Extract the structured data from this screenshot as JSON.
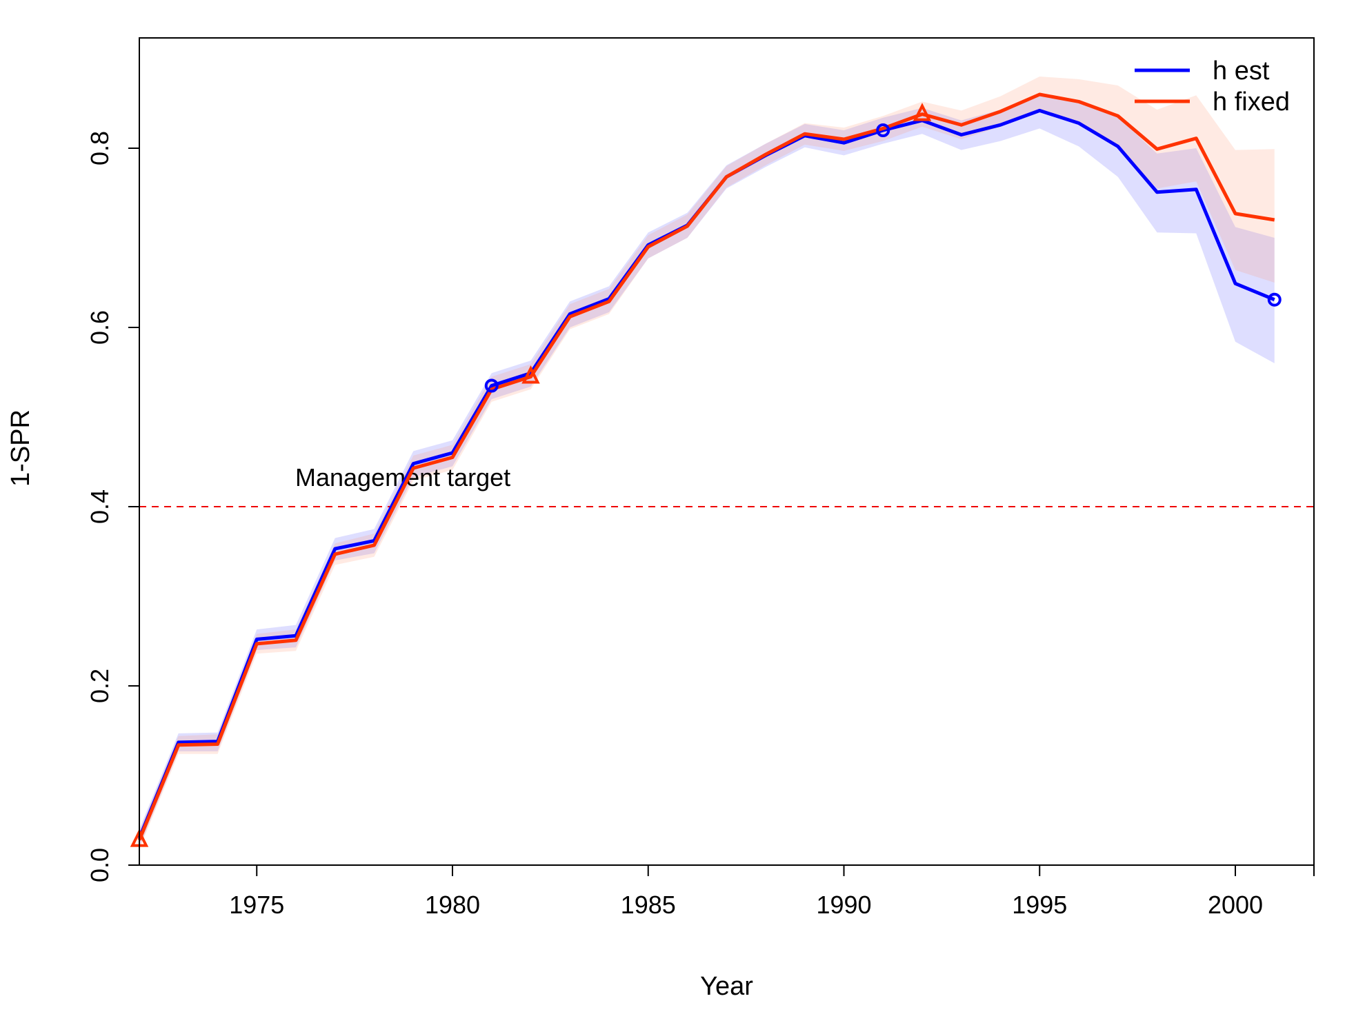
{
  "chart_data": {
    "type": "line",
    "title": "",
    "xlabel": "Year",
    "ylabel": "1-SPR",
    "xlim": [
      1972,
      2002
    ],
    "ylim": [
      0,
      0.9
    ],
    "x_ticks": [
      1975,
      1980,
      1985,
      1990,
      1995,
      2000
    ],
    "y_ticks": [
      0.0,
      0.2,
      0.4,
      0.6,
      0.8
    ],
    "x_tick_labels": [
      "1975",
      "1980",
      "1985",
      "1990",
      "1995",
      "2000"
    ],
    "y_tick_labels": [
      "0.0",
      "0.2",
      "0.4",
      "0.6",
      "0.8"
    ],
    "grid": false,
    "legend_position": "top-right",
    "x": [
      1972,
      1973,
      1974,
      1975,
      1976,
      1977,
      1978,
      1979,
      1980,
      1981,
      1982,
      1983,
      1984,
      1985,
      1986,
      1987,
      1988,
      1989,
      1990,
      1991,
      1992,
      1993,
      1994,
      1995,
      1996,
      1997,
      1998,
      1999,
      2000,
      2001
    ],
    "series": [
      {
        "name": "h est",
        "color": "#0000ff",
        "band_color": "#0000ff",
        "marker": "circle",
        "marker_years": [
          1981,
          1991,
          2001
        ],
        "values": [
          0.03,
          0.137,
          0.138,
          0.252,
          0.256,
          0.353,
          0.362,
          0.448,
          0.46,
          0.535,
          0.549,
          0.615,
          0.632,
          0.692,
          0.714,
          0.768,
          0.792,
          0.814,
          0.806,
          0.82,
          0.831,
          0.815,
          0.826,
          0.842,
          0.828,
          0.802,
          0.751,
          0.754,
          0.649,
          0.631
        ],
        "lower": [
          0.02,
          0.127,
          0.127,
          0.24,
          0.243,
          0.34,
          0.348,
          0.433,
          0.445,
          0.52,
          0.534,
          0.6,
          0.617,
          0.677,
          0.7,
          0.755,
          0.779,
          0.801,
          0.792,
          0.805,
          0.816,
          0.798,
          0.808,
          0.822,
          0.802,
          0.768,
          0.706,
          0.705,
          0.584,
          0.56
        ],
        "upper": [
          0.04,
          0.147,
          0.148,
          0.263,
          0.268,
          0.365,
          0.375,
          0.462,
          0.474,
          0.549,
          0.563,
          0.629,
          0.646,
          0.706,
          0.728,
          0.781,
          0.805,
          0.827,
          0.82,
          0.834,
          0.845,
          0.831,
          0.843,
          0.86,
          0.852,
          0.835,
          0.794,
          0.8,
          0.712,
          0.7
        ]
      },
      {
        "name": "h fixed",
        "color": "#ff3300",
        "band_color": "#ff8866",
        "marker": "triangle",
        "marker_years": [
          1972,
          1982,
          1992
        ],
        "values": [
          0.028,
          0.134,
          0.135,
          0.247,
          0.251,
          0.347,
          0.357,
          0.443,
          0.455,
          0.531,
          0.545,
          0.612,
          0.629,
          0.69,
          0.713,
          0.768,
          0.793,
          0.816,
          0.81,
          0.822,
          0.838,
          0.826,
          0.841,
          0.86,
          0.852,
          0.836,
          0.799,
          0.811,
          0.727,
          0.72
        ],
        "lower": [
          0.018,
          0.124,
          0.124,
          0.236,
          0.239,
          0.335,
          0.344,
          0.429,
          0.441,
          0.517,
          0.531,
          0.598,
          0.615,
          0.677,
          0.7,
          0.756,
          0.781,
          0.804,
          0.797,
          0.808,
          0.824,
          0.81,
          0.824,
          0.84,
          0.827,
          0.802,
          0.755,
          0.763,
          0.664,
          0.65
        ],
        "upper": [
          0.038,
          0.144,
          0.146,
          0.258,
          0.263,
          0.359,
          0.37,
          0.457,
          0.469,
          0.545,
          0.559,
          0.626,
          0.643,
          0.703,
          0.726,
          0.78,
          0.805,
          0.828,
          0.823,
          0.836,
          0.852,
          0.842,
          0.858,
          0.88,
          0.877,
          0.87,
          0.843,
          0.859,
          0.798,
          0.799
        ]
      }
    ],
    "reference_line": {
      "y": 0.4,
      "style": "dashed",
      "color": "#ee0000",
      "label": "Management target"
    }
  }
}
